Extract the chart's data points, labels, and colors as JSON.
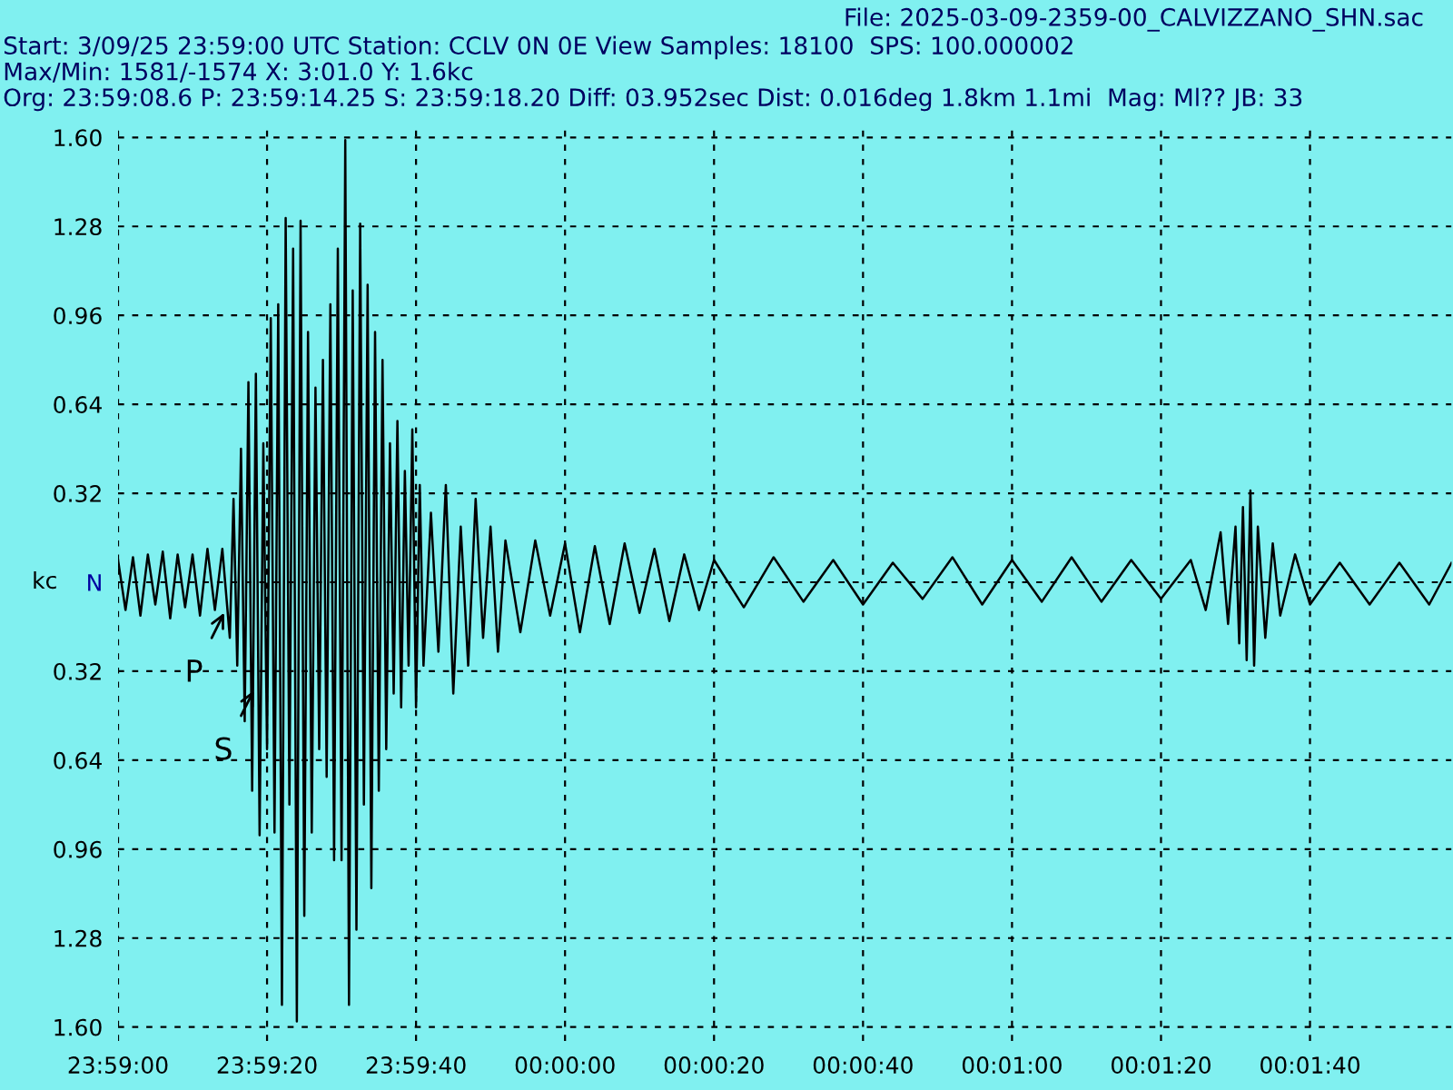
{
  "chart_data": {
    "type": "line",
    "title": "File: 2025-03-09-2359-00_CALVIZZANO_SHN.sac",
    "subtitle": "Start: 3/09/25 23:59:00 UTC Station: CCLV 0N 0E View Samples: 18100  SPS: 100.000002\nMax/Min: 1581/-1574 X: 3:01.0 Y: 1.6kc\nOrg: 23:59:08.6 P: 23:59:14.25 S: 23:59:18.20 Diff: 03.952sec Dist: 0.016deg 1.8km 1.1mi  Mag: Ml?? JB: 33",
    "ylabel": "kc",
    "series": [
      {
        "color": "#000000",
        "x": [
          "2025-03-09T23:59:00",
          "2025-03-09T23:59:01",
          "2025-03-09T23:59:02",
          "2025-03-09T23:59:03",
          "2025-03-09T23:59:04",
          "2025-03-09T23:59:05",
          "2025-03-09T23:59:06",
          "2025-03-09T23:59:07",
          "2025-03-09T23:59:08",
          "2025-03-09T23:59:09",
          "2025-03-09T23:59:10",
          "2025-03-09T23:59:11",
          "2025-03-09T23:59:12",
          "2025-03-09T23:59:13",
          "2025-03-09T23:59:14",
          "2025-03-09T23:59:15",
          "2025-03-09T23:59:15.5",
          "2025-03-09T23:59:16",
          "2025-03-09T23:59:16.5",
          "2025-03-09T23:59:17",
          "2025-03-09T23:59:17.5",
          "2025-03-09T23:59:18",
          "2025-03-09T23:59:18.5",
          "2025-03-09T23:59:19",
          "2025-03-09T23:59:19.5",
          "2025-03-09T23:59:20",
          "2025-03-09T23:59:20.5",
          "2025-03-09T23:59:21",
          "2025-03-09T23:59:21.5",
          "2025-03-09T23:59:22",
          "2025-03-09T23:59:22.5",
          "2025-03-09T23:59:23",
          "2025-03-09T23:59:23.5",
          "2025-03-09T23:59:24",
          "2025-03-09T23:59:24.5",
          "2025-03-09T23:59:25",
          "2025-03-09T23:59:25.5",
          "2025-03-09T23:59:26",
          "2025-03-09T23:59:26.5",
          "2025-03-09T23:59:27",
          "2025-03-09T23:59:27.5",
          "2025-03-09T23:59:28",
          "2025-03-09T23:59:28.5",
          "2025-03-09T23:59:29",
          "2025-03-09T23:59:29.5",
          "2025-03-09T23:59:30",
          "2025-03-09T23:59:30.5",
          "2025-03-09T23:59:31",
          "2025-03-09T23:59:31.5",
          "2025-03-09T23:59:32",
          "2025-03-09T23:59:32.5",
          "2025-03-09T23:59:33",
          "2025-03-09T23:59:33.5",
          "2025-03-09T23:59:34",
          "2025-03-09T23:59:34.5",
          "2025-03-09T23:59:35",
          "2025-03-09T23:59:35.5",
          "2025-03-09T23:59:36",
          "2025-03-09T23:59:36.5",
          "2025-03-09T23:59:37",
          "2025-03-09T23:59:37.5",
          "2025-03-09T23:59:38",
          "2025-03-09T23:59:38.5",
          "2025-03-09T23:59:39",
          "2025-03-09T23:59:39.5",
          "2025-03-09T23:59:40",
          "2025-03-09T23:59:40.5",
          "2025-03-09T23:59:41",
          "2025-03-09T23:59:42",
          "2025-03-09T23:59:43",
          "2025-03-09T23:59:44",
          "2025-03-09T23:59:45",
          "2025-03-09T23:59:46",
          "2025-03-09T23:59:47",
          "2025-03-09T23:59:48",
          "2025-03-09T23:59:49",
          "2025-03-09T23:59:50",
          "2025-03-09T23:59:51",
          "2025-03-09T23:59:52",
          "2025-03-09T23:59:54",
          "2025-03-09T23:59:56",
          "2025-03-09T23:59:58",
          "2025-03-10T00:00:00",
          "2025-03-10T00:00:02",
          "2025-03-10T00:00:04",
          "2025-03-10T00:00:06",
          "2025-03-10T00:00:08",
          "2025-03-10T00:00:10",
          "2025-03-10T00:00:12",
          "2025-03-10T00:00:14",
          "2025-03-10T00:00:16",
          "2025-03-10T00:00:18",
          "2025-03-10T00:00:20",
          "2025-03-10T00:00:24",
          "2025-03-10T00:00:28",
          "2025-03-10T00:00:32",
          "2025-03-10T00:00:36",
          "2025-03-10T00:00:40",
          "2025-03-10T00:00:44",
          "2025-03-10T00:00:48",
          "2025-03-10T00:00:52",
          "2025-03-10T00:00:56",
          "2025-03-10T00:01:00",
          "2025-03-10T00:01:04",
          "2025-03-10T00:01:08",
          "2025-03-10T00:01:12",
          "2025-03-10T00:01:16",
          "2025-03-10T00:01:20",
          "2025-03-10T00:01:24",
          "2025-03-10T00:01:26",
          "2025-03-10T00:01:28",
          "2025-03-10T00:01:29",
          "2025-03-10T00:01:30",
          "2025-03-10T00:01:30.5",
          "2025-03-10T00:01:31",
          "2025-03-10T00:01:31.5",
          "2025-03-10T00:01:32",
          "2025-03-10T00:01:32.5",
          "2025-03-10T00:01:33",
          "2025-03-10T00:01:34",
          "2025-03-10T00:01:35",
          "2025-03-10T00:01:36",
          "2025-03-10T00:01:38",
          "2025-03-10T00:01:40",
          "2025-03-10T00:01:44",
          "2025-03-10T00:01:48",
          "2025-03-10T00:01:52",
          "2025-03-10T00:01:56",
          "2025-03-10T00:01:59"
        ],
        "values": [
          0.08,
          -0.1,
          0.09,
          -0.12,
          0.1,
          -0.08,
          0.11,
          -0.13,
          0.1,
          -0.09,
          0.1,
          -0.12,
          0.12,
          -0.1,
          0.12,
          -0.2,
          0.3,
          -0.3,
          0.48,
          -0.5,
          0.72,
          -0.75,
          0.75,
          -0.91,
          0.5,
          -0.6,
          0.95,
          -0.9,
          1.0,
          -1.52,
          1.31,
          -0.8,
          1.2,
          -1.58,
          1.3,
          -1.2,
          0.9,
          -0.9,
          0.7,
          -0.6,
          0.8,
          -0.7,
          1.0,
          -1.0,
          1.2,
          -1.0,
          1.59,
          -1.52,
          1.05,
          -1.25,
          1.29,
          -0.8,
          1.07,
          -1.1,
          0.9,
          -0.75,
          0.8,
          -0.6,
          0.5,
          -0.4,
          0.58,
          -0.45,
          0.4,
          -0.3,
          0.55,
          -0.45,
          0.35,
          -0.3,
          0.25,
          -0.25,
          0.35,
          -0.4,
          0.2,
          -0.3,
          0.3,
          -0.2,
          0.2,
          -0.25,
          0.15,
          -0.18,
          0.15,
          -0.12,
          0.14,
          -0.18,
          0.13,
          -0.15,
          0.14,
          -0.11,
          0.12,
          -0.14,
          0.1,
          -0.1,
          0.08,
          -0.09,
          0.09,
          -0.07,
          0.08,
          -0.08,
          0.07,
          -0.06,
          0.09,
          -0.08,
          0.08,
          -0.07,
          0.09,
          -0.07,
          0.08,
          -0.06,
          0.08,
          -0.1,
          0.18,
          -0.15,
          0.2,
          -0.22,
          0.27,
          -0.28,
          0.33,
          -0.3,
          0.2,
          -0.2,
          0.14,
          -0.12,
          0.1,
          -0.08,
          0.07,
          -0.08,
          0.07,
          -0.08,
          0.07
        ]
      }
    ],
    "xlim": [
      "2025-03-09T23:59:00",
      "2025-03-10T00:01:59"
    ],
    "ylim": [
      -1.65,
      1.65
    ],
    "xticks": [
      {
        "value": "2025-03-09T23:59:00",
        "label": "23:59:00"
      },
      {
        "value": "2025-03-09T23:59:20",
        "label": "23:59:20"
      },
      {
        "value": "2025-03-09T23:59:40",
        "label": "23:59:40"
      },
      {
        "value": "2025-03-10T00:00:00",
        "label": "00:00:00"
      },
      {
        "value": "2025-03-10T00:00:20",
        "label": "00:00:20"
      },
      {
        "value": "2025-03-10T00:00:40",
        "label": "00:00:40"
      },
      {
        "value": "2025-03-10T00:01:00",
        "label": "00:01:00"
      },
      {
        "value": "2025-03-10T00:01:20",
        "label": "00:01:20"
      },
      {
        "value": "2025-03-10T00:01:40",
        "label": "00:01:40"
      }
    ],
    "yticks": [
      {
        "value": 1.6,
        "label": "1.60"
      },
      1.28,
      0.96,
      0.64,
      0.32,
      {
        "value": 0,
        "label": "N"
      },
      {
        "value": -0.32,
        "label": "0.32"
      },
      {
        "value": -0.64,
        "label": "0.64"
      },
      {
        "value": -0.96,
        "label": "0.96"
      },
      {
        "value": -1.28,
        "label": "1.28"
      },
      {
        "value": -1.6,
        "label": "1.60"
      }
    ],
    "annotations": [
      {
        "text": "P",
        "x": "2025-03-09T23:59:14.25",
        "y": -0.11
      },
      {
        "text": "S",
        "x": "2025-03-09T23:59:18.2",
        "y": -0.39
      }
    ],
    "grid": true,
    "line_style": "solid"
  }
}
